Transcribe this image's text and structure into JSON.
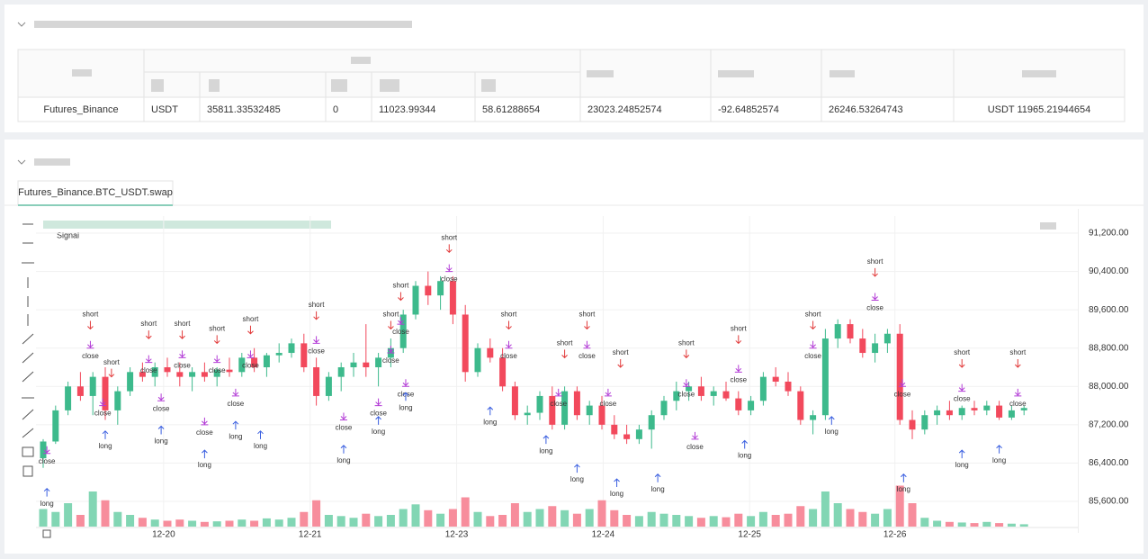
{
  "table": {
    "rows": [
      [
        "Futures_Binance",
        "USDT",
        "35811.33532485",
        "0",
        "11023.99344",
        "58.61288654",
        "23023.24852574",
        "-92.64852574",
        "26246.53264743",
        "USDT 11965.21944654"
      ]
    ]
  },
  "tab": "Futures_Binance.BTC_USDT.swap",
  "chart_data": {
    "type": "candlestick",
    "legend": "Signal",
    "up_color": "#3dba8c",
    "down_color": "#f2495c",
    "up_volume_color": "#82d6b4",
    "down_volume_color": "#f78d9c",
    "grid": true,
    "ylim": [
      85100,
      91400
    ],
    "yticks": [
      {
        "value": 91200,
        "label": "91,200.00"
      },
      {
        "value": 90400,
        "label": "90,400.00"
      },
      {
        "value": 89600,
        "label": "89,600.00"
      },
      {
        "value": 88800,
        "label": "88,800.00"
      },
      {
        "value": 88000,
        "label": "88,000.00"
      },
      {
        "value": 87200,
        "label": "87,200.00"
      },
      {
        "value": 86400,
        "label": "86,400.00"
      },
      {
        "value": 85600,
        "label": "85,600.00"
      }
    ],
    "xticks": [
      {
        "value": 9.7,
        "label": "12-20"
      },
      {
        "value": 21.5,
        "label": "12-21"
      },
      {
        "value": 33.3,
        "label": "12-23"
      },
      {
        "value": 45.1,
        "label": "12-24"
      },
      {
        "value": 56.9,
        "label": "12-25"
      },
      {
        "value": 68.6,
        "label": "12-26"
      }
    ],
    "open": [
      86500,
      86850,
      87500,
      88000,
      87800,
      88200,
      87500,
      87900,
      88300,
      88200,
      88400,
      88300,
      88200,
      88300,
      88200,
      88350,
      88300,
      88600,
      88400,
      88650,
      88700,
      88900,
      88400,
      87800,
      88200,
      88400,
      88500,
      88400,
      88600,
      88800,
      89500,
      90100,
      89900,
      90200,
      89500,
      88300,
      88800,
      88600,
      88000,
      87400,
      87450,
      87800,
      87200,
      87900,
      87400,
      87600,
      87200,
      87000,
      86900,
      87100,
      87400,
      87700,
      87900,
      88000,
      87800,
      87900,
      87750,
      87500,
      87700,
      88200,
      88100,
      87900,
      87300,
      87400,
      89000,
      89300,
      89000,
      88700,
      88900,
      89100,
      87300,
      87100,
      87400,
      87500,
      87400,
      87550,
      87500,
      87600,
      87350,
      87500
    ],
    "high": [
      86900,
      87600,
      88100,
      88300,
      88300,
      88400,
      88000,
      88400,
      88500,
      88500,
      88600,
      88500,
      88400,
      88500,
      88400,
      88600,
      88700,
      88800,
      88700,
      88900,
      89000,
      89100,
      88600,
      88300,
      88500,
      88700,
      89300,
      88700,
      89000,
      89600,
      90200,
      90400,
      90300,
      90300,
      89700,
      88900,
      89000,
      88800,
      88100,
      87600,
      87900,
      88000,
      88000,
      88000,
      87700,
      87800,
      87400,
      87200,
      87200,
      87500,
      87800,
      88100,
      88100,
      88200,
      88000,
      88100,
      87900,
      87800,
      88300,
      88400,
      88300,
      88000,
      87500,
      89200,
      89400,
      89400,
      89200,
      89100,
      89200,
      89300,
      87500,
      87500,
      87600,
      87700,
      87600,
      87700,
      87700,
      87700,
      87600,
      87600
    ],
    "low": [
      86300,
      86800,
      87400,
      87700,
      87400,
      87300,
      87200,
      87800,
      88100,
      88000,
      88200,
      88000,
      87900,
      88100,
      88000,
      88200,
      88200,
      88300,
      88200,
      88500,
      88600,
      88300,
      87600,
      87700,
      87900,
      88200,
      88200,
      88000,
      88400,
      88700,
      89400,
      89700,
      89600,
      89300,
      88100,
      88200,
      88500,
      87900,
      87300,
      87200,
      87300,
      87100,
      87100,
      87300,
      87200,
      87100,
      86900,
      86800,
      86800,
      86700,
      87300,
      87500,
      87700,
      87700,
      87600,
      87700,
      87400,
      87400,
      87600,
      88000,
      87800,
      87200,
      87000,
      87300,
      88800,
      88900,
      88600,
      88500,
      88700,
      87200,
      86900,
      87000,
      87200,
      87300,
      87300,
      87400,
      87400,
      87300,
      87300,
      87400
    ],
    "close": [
      86850,
      87500,
      88000,
      87800,
      88200,
      87500,
      87900,
      88300,
      88200,
      88400,
      88300,
      88200,
      88300,
      88200,
      88350,
      88300,
      88600,
      88400,
      88650,
      88700,
      88900,
      88400,
      87800,
      88200,
      88400,
      88500,
      88400,
      88600,
      88800,
      89500,
      90100,
      89900,
      90200,
      89500,
      88300,
      88800,
      88600,
      88000,
      87400,
      87450,
      87800,
      87200,
      87900,
      87400,
      87600,
      87200,
      87000,
      86900,
      87100,
      87400,
      87700,
      87900,
      88000,
      87800,
      87900,
      87750,
      87500,
      87700,
      88200,
      88100,
      87900,
      87300,
      87400,
      89000,
      89300,
      89000,
      88700,
      88900,
      89100,
      87300,
      87100,
      87400,
      87500,
      87400,
      87550,
      87500,
      87600,
      87350,
      87500,
      87550
    ],
    "volume": [
      30,
      25,
      40,
      20,
      60,
      45,
      25,
      20,
      15,
      12,
      10,
      12,
      10,
      8,
      9,
      10,
      12,
      10,
      14,
      12,
      15,
      25,
      45,
      20,
      18,
      15,
      22,
      18,
      20,
      30,
      38,
      28,
      22,
      30,
      50,
      25,
      18,
      20,
      40,
      25,
      30,
      35,
      28,
      22,
      30,
      45,
      28,
      20,
      18,
      25,
      22,
      20,
      18,
      15,
      18,
      16,
      22,
      18,
      25,
      20,
      22,
      35,
      30,
      60,
      40,
      30,
      25,
      22,
      30,
      70,
      40,
      15,
      10,
      8,
      7,
      6,
      8,
      6,
      5,
      4
    ],
    "signals": [
      {
        "label": "short",
        "index": 3.8,
        "value": 89500
      },
      {
        "label": "close",
        "index": 3.8,
        "value": 88800
      },
      {
        "label": "close",
        "index": 0.3,
        "value": 86600
      },
      {
        "label": "long",
        "index": 0.3,
        "value": 85700
      },
      {
        "label": "short",
        "index": 5.5,
        "value": 88500
      },
      {
        "label": "close",
        "index": 4.8,
        "value": 87600
      },
      {
        "label": "long",
        "index": 5,
        "value": 86900
      },
      {
        "label": "short",
        "index": 8.5,
        "value": 89300
      },
      {
        "label": "close",
        "index": 8.5,
        "value": 88500
      },
      {
        "label": "close",
        "index": 9.5,
        "value": 87700
      },
      {
        "label": "long",
        "index": 9.5,
        "value": 87000
      },
      {
        "label": "short",
        "index": 11.2,
        "value": 89300
      },
      {
        "label": "close",
        "index": 11.2,
        "value": 88600
      },
      {
        "label": "close",
        "index": 13,
        "value": 87200
      },
      {
        "label": "long",
        "index": 13,
        "value": 86500
      },
      {
        "label": "short",
        "index": 14,
        "value": 89200
      },
      {
        "label": "close",
        "index": 14,
        "value": 88500
      },
      {
        "label": "close",
        "index": 15.5,
        "value": 87800
      },
      {
        "label": "long",
        "index": 15.5,
        "value": 87100
      },
      {
        "label": "short",
        "index": 16.7,
        "value": 89400
      },
      {
        "label": "close",
        "index": 16.7,
        "value": 88600
      },
      {
        "label": "long",
        "index": 17.5,
        "value": 86900
      },
      {
        "label": "short",
        "index": 22,
        "value": 89700
      },
      {
        "label": "close",
        "index": 22,
        "value": 88900
      },
      {
        "label": "close",
        "index": 24.2,
        "value": 87300
      },
      {
        "label": "long",
        "index": 24.2,
        "value": 86600
      },
      {
        "label": "short",
        "index": 28,
        "value": 89500
      },
      {
        "label": "close",
        "index": 28,
        "value": 88700
      },
      {
        "label": "close",
        "index": 27,
        "value": 87600
      },
      {
        "label": "long",
        "index": 27,
        "value": 87200
      },
      {
        "label": "short",
        "index": 28.8,
        "value": 90100
      },
      {
        "label": "close",
        "index": 28.8,
        "value": 89300
      },
      {
        "label": "close",
        "index": 29.2,
        "value": 88000
      },
      {
        "label": "long",
        "index": 29.2,
        "value": 87700
      },
      {
        "label": "short",
        "index": 32.7,
        "value": 91100
      },
      {
        "label": "close",
        "index": 32.7,
        "value": 90400
      },
      {
        "label": "short",
        "index": 37.5,
        "value": 89500
      },
      {
        "label": "close",
        "index": 37.5,
        "value": 88800
      },
      {
        "label": "long",
        "index": 36,
        "value": 87400
      },
      {
        "label": "short",
        "index": 42,
        "value": 88900
      },
      {
        "label": "close",
        "index": 41.5,
        "value": 87800
      },
      {
        "label": "long",
        "index": 40.5,
        "value": 86800
      },
      {
        "label": "short",
        "index": 43.8,
        "value": 89500
      },
      {
        "label": "close",
        "index": 43.8,
        "value": 88800
      },
      {
        "label": "long",
        "index": 43,
        "value": 86200
      },
      {
        "label": "short",
        "index": 46.5,
        "value": 88700
      },
      {
        "label": "close",
        "index": 45.5,
        "value": 87800
      },
      {
        "label": "long",
        "index": 46.2,
        "value": 85900
      },
      {
        "label": "short",
        "index": 51.8,
        "value": 88900
      },
      {
        "label": "close",
        "index": 51.8,
        "value": 88000
      },
      {
        "label": "close",
        "index": 52.5,
        "value": 86900
      },
      {
        "label": "long",
        "index": 49.5,
        "value": 86000
      },
      {
        "label": "short",
        "index": 56,
        "value": 89200
      },
      {
        "label": "close",
        "index": 56,
        "value": 88300
      },
      {
        "label": "long",
        "index": 56.5,
        "value": 86700
      },
      {
        "label": "short",
        "index": 62,
        "value": 89500
      },
      {
        "label": "close",
        "index": 62,
        "value": 88800
      },
      {
        "label": "long",
        "index": 63.5,
        "value": 87200
      },
      {
        "label": "short",
        "index": 67,
        "value": 90600
      },
      {
        "label": "close",
        "index": 67,
        "value": 89800
      },
      {
        "label": "close",
        "index": 69.2,
        "value": 88000
      },
      {
        "label": "long",
        "index": 69.3,
        "value": 86000
      },
      {
        "label": "short",
        "index": 74,
        "value": 88700
      },
      {
        "label": "close",
        "index": 74,
        "value": 87900
      },
      {
        "label": "long",
        "index": 74,
        "value": 86500
      },
      {
        "label": "short",
        "index": 78.5,
        "value": 88700
      },
      {
        "label": "close",
        "index": 78.5,
        "value": 87800
      },
      {
        "label": "long",
        "index": 77,
        "value": 86600
      }
    ]
  }
}
